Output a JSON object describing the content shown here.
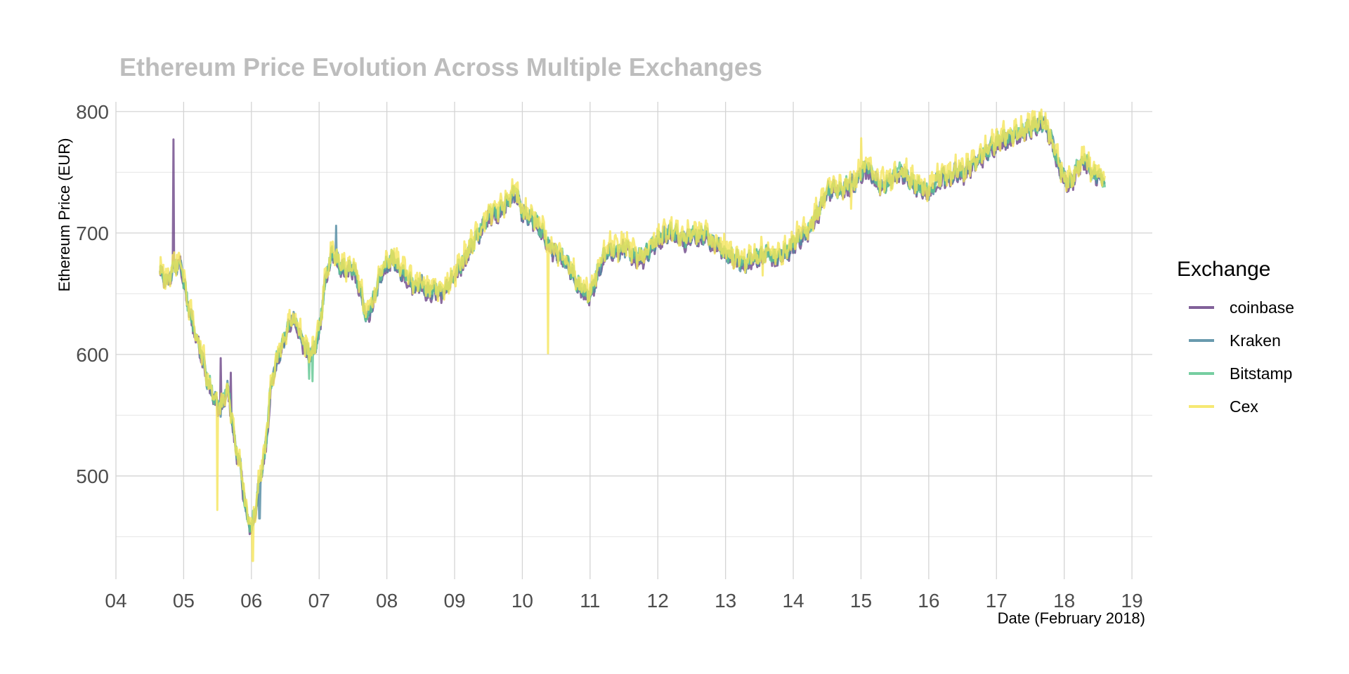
{
  "chart_data": {
    "type": "line",
    "title": "Ethereum Price Evolution Across Multiple Exchanges",
    "xlabel": "Date (February 2018)",
    "ylabel": "Ethereum Price (EUR)",
    "xlim": [
      4,
      19.3
    ],
    "ylim": [
      415,
      808
    ],
    "x_ticks": [
      4,
      5,
      6,
      7,
      8,
      9,
      10,
      11,
      12,
      13,
      14,
      15,
      16,
      17,
      18,
      19
    ],
    "x_tick_labels": [
      "04",
      "05",
      "06",
      "07",
      "08",
      "09",
      "10",
      "11",
      "12",
      "13",
      "14",
      "15",
      "16",
      "17",
      "18",
      "19"
    ],
    "y_ticks": [
      500,
      600,
      700,
      800
    ],
    "y_tick_labels": [
      "500",
      "600",
      "700",
      "800"
    ],
    "legend": {
      "title": "Exchange",
      "position": "right"
    },
    "base_curve": {
      "x": [
        4.65,
        4.75,
        4.85,
        4.95,
        5.05,
        5.15,
        5.25,
        5.35,
        5.45,
        5.55,
        5.65,
        5.75,
        5.85,
        5.92,
        6.0,
        6.05,
        6.1,
        6.2,
        6.3,
        6.4,
        6.5,
        6.6,
        6.7,
        6.8,
        6.9,
        7.0,
        7.1,
        7.2,
        7.3,
        7.4,
        7.5,
        7.6,
        7.7,
        7.8,
        7.9,
        8.0,
        8.1,
        8.2,
        8.3,
        8.4,
        8.5,
        8.6,
        8.7,
        8.8,
        8.9,
        9.0,
        9.1,
        9.2,
        9.3,
        9.4,
        9.5,
        9.6,
        9.7,
        9.8,
        9.9,
        10.0,
        10.1,
        10.2,
        10.3,
        10.4,
        10.5,
        10.6,
        10.7,
        10.8,
        10.9,
        11.0,
        11.1,
        11.2,
        11.3,
        11.4,
        11.5,
        11.6,
        11.7,
        11.8,
        11.9,
        12.0,
        12.1,
        12.2,
        12.3,
        12.4,
        12.5,
        12.6,
        12.7,
        12.8,
        12.9,
        13.0,
        13.1,
        13.2,
        13.3,
        13.4,
        13.5,
        13.6,
        13.7,
        13.8,
        13.9,
        14.0,
        14.1,
        14.2,
        14.3,
        14.4,
        14.5,
        14.6,
        14.7,
        14.8,
        14.9,
        15.0,
        15.1,
        15.2,
        15.3,
        15.4,
        15.5,
        15.6,
        15.7,
        15.8,
        15.9,
        16.0,
        16.1,
        16.2,
        16.3,
        16.4,
        16.5,
        16.6,
        16.7,
        16.8,
        16.9,
        17.0,
        17.1,
        17.2,
        17.3,
        17.4,
        17.5,
        17.6,
        17.7,
        17.8,
        17.9,
        18.0,
        18.1,
        18.2,
        18.3,
        18.4,
        18.5,
        18.6
      ],
      "y": [
        670,
        660,
        672,
        678,
        645,
        622,
        605,
        580,
        565,
        555,
        575,
        530,
        505,
        470,
        458,
        470,
        490,
        520,
        580,
        600,
        615,
        632,
        620,
        605,
        600,
        620,
        665,
        685,
        675,
        670,
        672,
        655,
        630,
        645,
        665,
        675,
        680,
        670,
        665,
        658,
        660,
        652,
        655,
        650,
        658,
        665,
        675,
        685,
        695,
        705,
        715,
        718,
        720,
        728,
        735,
        718,
        715,
        710,
        700,
        690,
        685,
        680,
        672,
        660,
        652,
        650,
        665,
        680,
        688,
        685,
        690,
        685,
        680,
        682,
        688,
        695,
        700,
        702,
        698,
        695,
        700,
        698,
        700,
        692,
        690,
        685,
        680,
        678,
        676,
        680,
        682,
        684,
        680,
        682,
        685,
        692,
        698,
        700,
        712,
        722,
        735,
        738,
        735,
        740,
        742,
        750,
        755,
        745,
        740,
        742,
        748,
        752,
        745,
        740,
        738,
        735,
        742,
        748,
        745,
        752,
        750,
        755,
        760,
        765,
        770,
        775,
        778,
        780,
        782,
        785,
        788,
        790,
        792,
        780,
        760,
        745,
        742,
        755,
        762,
        750,
        748,
        742
      ]
    },
    "series": [
      {
        "name": "coinbase",
        "color": "#6b4587",
        "offset": -3,
        "jitter": 6,
        "spikes": [
          [
            4.85,
            777
          ],
          [
            5.55,
            597
          ],
          [
            5.7,
            585
          ]
        ]
      },
      {
        "name": "Kraken",
        "color": "#4f88a0",
        "offset": -1,
        "jitter": 6,
        "spikes": [
          [
            6.12,
            465
          ],
          [
            7.25,
            706
          ]
        ]
      },
      {
        "name": "Bitstamp",
        "color": "#5ec690",
        "offset": 0,
        "jitter": 6,
        "spikes": [
          [
            6.9,
            578
          ],
          [
            6.85,
            580
          ]
        ]
      },
      {
        "name": "Cex",
        "color": "#f5e55a",
        "offset": 2,
        "jitter": 9,
        "spikes": [
          [
            10.38,
            601
          ],
          [
            5.5,
            472
          ],
          [
            6.02,
            430
          ],
          [
            13.55,
            665
          ],
          [
            15.0,
            778
          ],
          [
            14.85,
            720
          ],
          [
            17.65,
            797
          ]
        ]
      }
    ]
  }
}
